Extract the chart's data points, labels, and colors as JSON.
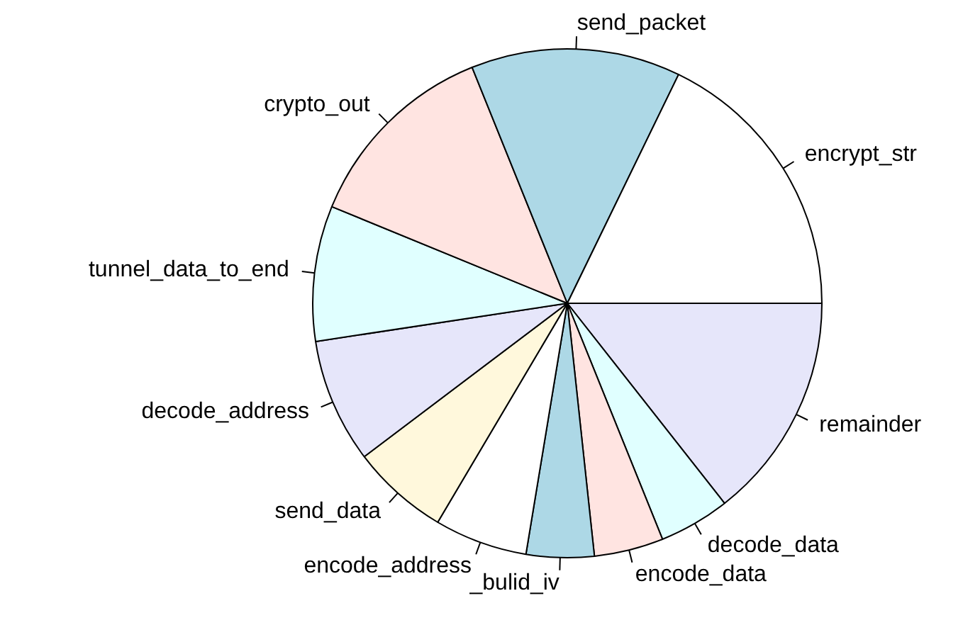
{
  "chart_data": {
    "type": "pie",
    "categories": [
      "encrypt_str",
      "send_packet",
      "crypto_out",
      "tunnel_data_to_end",
      "decode_address",
      "send_data",
      "encode_address",
      "_bulid_iv",
      "encode_data",
      "decode_data",
      "remainder"
    ],
    "values": [
      17.8,
      13.3,
      12.7,
      8.6,
      7.9,
      6.2,
      5.9,
      4.3,
      4.4,
      4.5,
      14.4
    ],
    "colors": [
      "#ffffff",
      "#add8e6",
      "#ffe4e1",
      "#e0ffff",
      "#e6e6fa",
      "#fff8dc",
      "#ffffff",
      "#add8e6",
      "#ffe4e1",
      "#e0ffff",
      "#e6e6fa"
    ],
    "legend": false
  }
}
